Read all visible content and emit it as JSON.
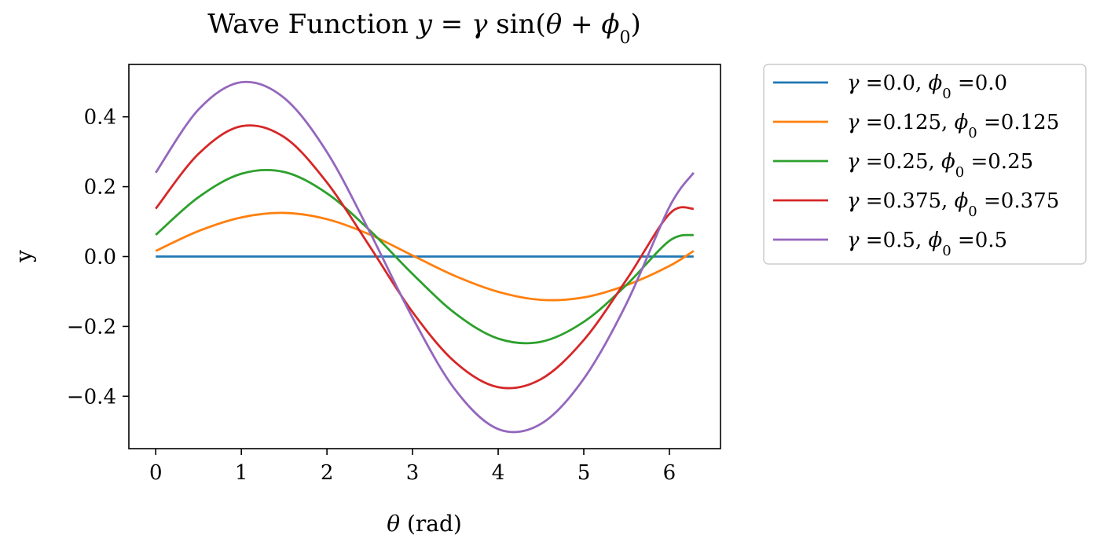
{
  "chart_data": {
    "type": "line",
    "title": "Wave Function y = γ sin(θ + ϕ0)",
    "title_parts": {
      "prefix": "Wave Function ",
      "y": "y",
      "eq": " = ",
      "gamma": "γ",
      "sin": " sin(",
      "theta": "θ",
      "plus": " + ",
      "phi": "ϕ",
      "sub": "0",
      "close": ")"
    },
    "xlabel": "θ (rad)",
    "xlabel_parts": {
      "sym": "θ",
      "rest": " (rad)"
    },
    "ylabel": "y",
    "xlim": [
      -0.314,
      6.597
    ],
    "ylim": [
      -0.55,
      0.55
    ],
    "xticks": [
      0,
      1,
      2,
      3,
      4,
      5,
      6
    ],
    "yticks": [
      -0.4,
      -0.2,
      0.0,
      0.2,
      0.4
    ],
    "ytick_labels": [
      "−0.4",
      "−0.2",
      "0.0",
      "0.2",
      "0.4"
    ],
    "x": [
      0,
      0.5,
      1.0,
      1.5,
      2.0,
      2.5,
      3.0,
      3.5,
      4.0,
      4.5,
      5.0,
      5.5,
      6.0,
      6.2832
    ],
    "series": [
      {
        "gamma": "0.0",
        "phi": "0.0",
        "label": "γ =0.0, ϕ0 =0.0",
        "color": "#1f77b4",
        "values": [
          0,
          0,
          0,
          0,
          0,
          0,
          0,
          0,
          0,
          0,
          0,
          0,
          0,
          0
        ]
      },
      {
        "gamma": "0.125",
        "phi": "0.125",
        "label": "γ =0.125, ϕ0 =0.125",
        "color": "#ff7f0e",
        "values": [
          0.016,
          0.073,
          0.112,
          0.125,
          0.107,
          0.063,
          0.003,
          -0.056,
          -0.101,
          -0.124,
          -0.117,
          -0.082,
          -0.027,
          0.016
        ]
      },
      {
        "gamma": "0.25",
        "phi": "0.25",
        "label": "γ =0.25, ϕ0 =0.25",
        "color": "#2ca02c",
        "values": [
          0.062,
          0.17,
          0.237,
          0.242,
          0.181,
          0.075,
          -0.05,
          -0.163,
          -0.235,
          -0.244,
          -0.187,
          -0.081,
          0.045,
          0.062
        ]
      },
      {
        "gamma": "0.375",
        "phi": "0.375",
        "label": "γ =0.375, ϕ0 =0.375",
        "color": "#d62728",
        "values": [
          0.137,
          0.294,
          0.373,
          0.342,
          0.212,
          0.029,
          -0.159,
          -0.303,
          -0.374,
          -0.351,
          -0.239,
          -0.066,
          0.122,
          0.137
        ]
      },
      {
        "gamma": "0.5",
        "phi": "0.5",
        "label": "γ =0.5, ϕ0 =0.5",
        "color": "#9467bd",
        "values": [
          0.24,
          0.421,
          0.499,
          0.454,
          0.299,
          0.07,
          -0.175,
          -0.382,
          -0.494,
          -0.479,
          -0.35,
          -0.134,
          0.142,
          0.24
        ]
      }
    ],
    "legend_position": "outside-right-top",
    "grid": false
  }
}
